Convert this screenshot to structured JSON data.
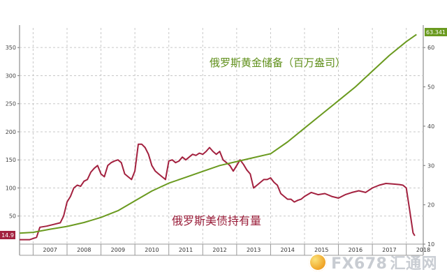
{
  "chart_data": {
    "type": "line",
    "annotations": {
      "gold_label": "俄罗斯黄金储备（百万盎司）",
      "treasury_label": "俄罗斯美债持有量"
    },
    "x_tick_labels": [
      "2007",
      "2008",
      "2009",
      "2010",
      "2011",
      "2012",
      "2013",
      "2014",
      "2015",
      "2016",
      "2017",
      "2018"
    ],
    "xlim": [
      2006.6,
      2018.5
    ],
    "left_axis": {
      "ticks": [
        50,
        100,
        150,
        200,
        250,
        300,
        350
      ],
      "ylim": [
        0,
        385
      ]
    },
    "right_axis": {
      "ticks": [
        10,
        20,
        30,
        40,
        50,
        60
      ],
      "ylim": [
        10,
        65
      ]
    },
    "end_labels": {
      "left": "14.9",
      "right": "63.341"
    },
    "grid": true,
    "series": [
      {
        "axis": "left",
        "color": "#a3213f",
        "points": [
          [
            2006.6,
            8
          ],
          [
            2006.9,
            8
          ],
          [
            2007.0,
            10
          ],
          [
            2007.1,
            12
          ],
          [
            2007.2,
            30
          ],
          [
            2007.4,
            32
          ],
          [
            2007.6,
            35
          ],
          [
            2007.8,
            38
          ],
          [
            2007.9,
            50
          ],
          [
            2008.0,
            75
          ],
          [
            2008.1,
            85
          ],
          [
            2008.2,
            100
          ],
          [
            2008.3,
            105
          ],
          [
            2008.4,
            103
          ],
          [
            2008.5,
            112
          ],
          [
            2008.6,
            115
          ],
          [
            2008.7,
            128
          ],
          [
            2008.8,
            135
          ],
          [
            2008.9,
            140
          ],
          [
            2009.0,
            125
          ],
          [
            2009.1,
            120
          ],
          [
            2009.2,
            140
          ],
          [
            2009.3,
            145
          ],
          [
            2009.4,
            148
          ],
          [
            2009.5,
            150
          ],
          [
            2009.6,
            145
          ],
          [
            2009.7,
            125
          ],
          [
            2009.8,
            120
          ],
          [
            2009.9,
            115
          ],
          [
            2010.0,
            130
          ],
          [
            2010.1,
            178
          ],
          [
            2010.2,
            178
          ],
          [
            2010.3,
            172
          ],
          [
            2010.4,
            160
          ],
          [
            2010.5,
            140
          ],
          [
            2010.6,
            130
          ],
          [
            2010.7,
            125
          ],
          [
            2010.8,
            120
          ],
          [
            2010.9,
            115
          ],
          [
            2011.0,
            148
          ],
          [
            2011.1,
            150
          ],
          [
            2011.2,
            145
          ],
          [
            2011.3,
            148
          ],
          [
            2011.4,
            155
          ],
          [
            2011.5,
            150
          ],
          [
            2011.6,
            155
          ],
          [
            2011.7,
            160
          ],
          [
            2011.8,
            158
          ],
          [
            2011.9,
            162
          ],
          [
            2012.0,
            160
          ],
          [
            2012.1,
            165
          ],
          [
            2012.2,
            172
          ],
          [
            2012.3,
            165
          ],
          [
            2012.4,
            160
          ],
          [
            2012.5,
            165
          ],
          [
            2012.6,
            150
          ],
          [
            2012.7,
            145
          ],
          [
            2012.8,
            140
          ],
          [
            2012.9,
            130
          ],
          [
            2013.0,
            140
          ],
          [
            2013.1,
            150
          ],
          [
            2013.2,
            142
          ],
          [
            2013.3,
            132
          ],
          [
            2013.4,
            125
          ],
          [
            2013.5,
            100
          ],
          [
            2013.6,
            105
          ],
          [
            2013.7,
            110
          ],
          [
            2013.8,
            115
          ],
          [
            2013.9,
            115
          ],
          [
            2014.0,
            118
          ],
          [
            2014.1,
            110
          ],
          [
            2014.2,
            105
          ],
          [
            2014.3,
            90
          ],
          [
            2014.4,
            85
          ],
          [
            2014.5,
            80
          ],
          [
            2014.6,
            80
          ],
          [
            2014.7,
            75
          ],
          [
            2014.8,
            78
          ],
          [
            2014.9,
            80
          ],
          [
            2015.0,
            85
          ],
          [
            2015.2,
            92
          ],
          [
            2015.4,
            88
          ],
          [
            2015.6,
            90
          ],
          [
            2015.8,
            85
          ],
          [
            2016.0,
            82
          ],
          [
            2016.2,
            88
          ],
          [
            2016.4,
            92
          ],
          [
            2016.6,
            95
          ],
          [
            2016.8,
            92
          ],
          [
            2017.0,
            100
          ],
          [
            2017.2,
            105
          ],
          [
            2017.4,
            108
          ],
          [
            2017.6,
            107
          ],
          [
            2017.8,
            106
          ],
          [
            2017.9,
            105
          ],
          [
            2018.0,
            100
          ],
          [
            2018.1,
            60
          ],
          [
            2018.2,
            20
          ],
          [
            2018.25,
            14.9
          ]
        ]
      },
      {
        "axis": "right",
        "color": "#6a9a1f",
        "points": [
          [
            2006.6,
            12.8
          ],
          [
            2007.0,
            13.0
          ],
          [
            2007.5,
            13.8
          ],
          [
            2008.0,
            14.5
          ],
          [
            2008.5,
            15.5
          ],
          [
            2009.0,
            16.8
          ],
          [
            2009.5,
            18.5
          ],
          [
            2010.0,
            21.0
          ],
          [
            2010.5,
            23.5
          ],
          [
            2011.0,
            25.5
          ],
          [
            2011.5,
            27.0
          ],
          [
            2012.0,
            28.5
          ],
          [
            2012.5,
            30.0
          ],
          [
            2013.0,
            31.0
          ],
          [
            2013.5,
            32.0
          ],
          [
            2014.0,
            33.0
          ],
          [
            2014.5,
            36.0
          ],
          [
            2015.0,
            39.5
          ],
          [
            2015.5,
            43.0
          ],
          [
            2016.0,
            46.5
          ],
          [
            2016.5,
            50.0
          ],
          [
            2017.0,
            54.0
          ],
          [
            2017.5,
            58.0
          ],
          [
            2018.0,
            61.5
          ],
          [
            2018.3,
            63.341
          ]
        ]
      }
    ]
  },
  "watermark": {
    "text": "FX678",
    "cn": "汇通网"
  }
}
